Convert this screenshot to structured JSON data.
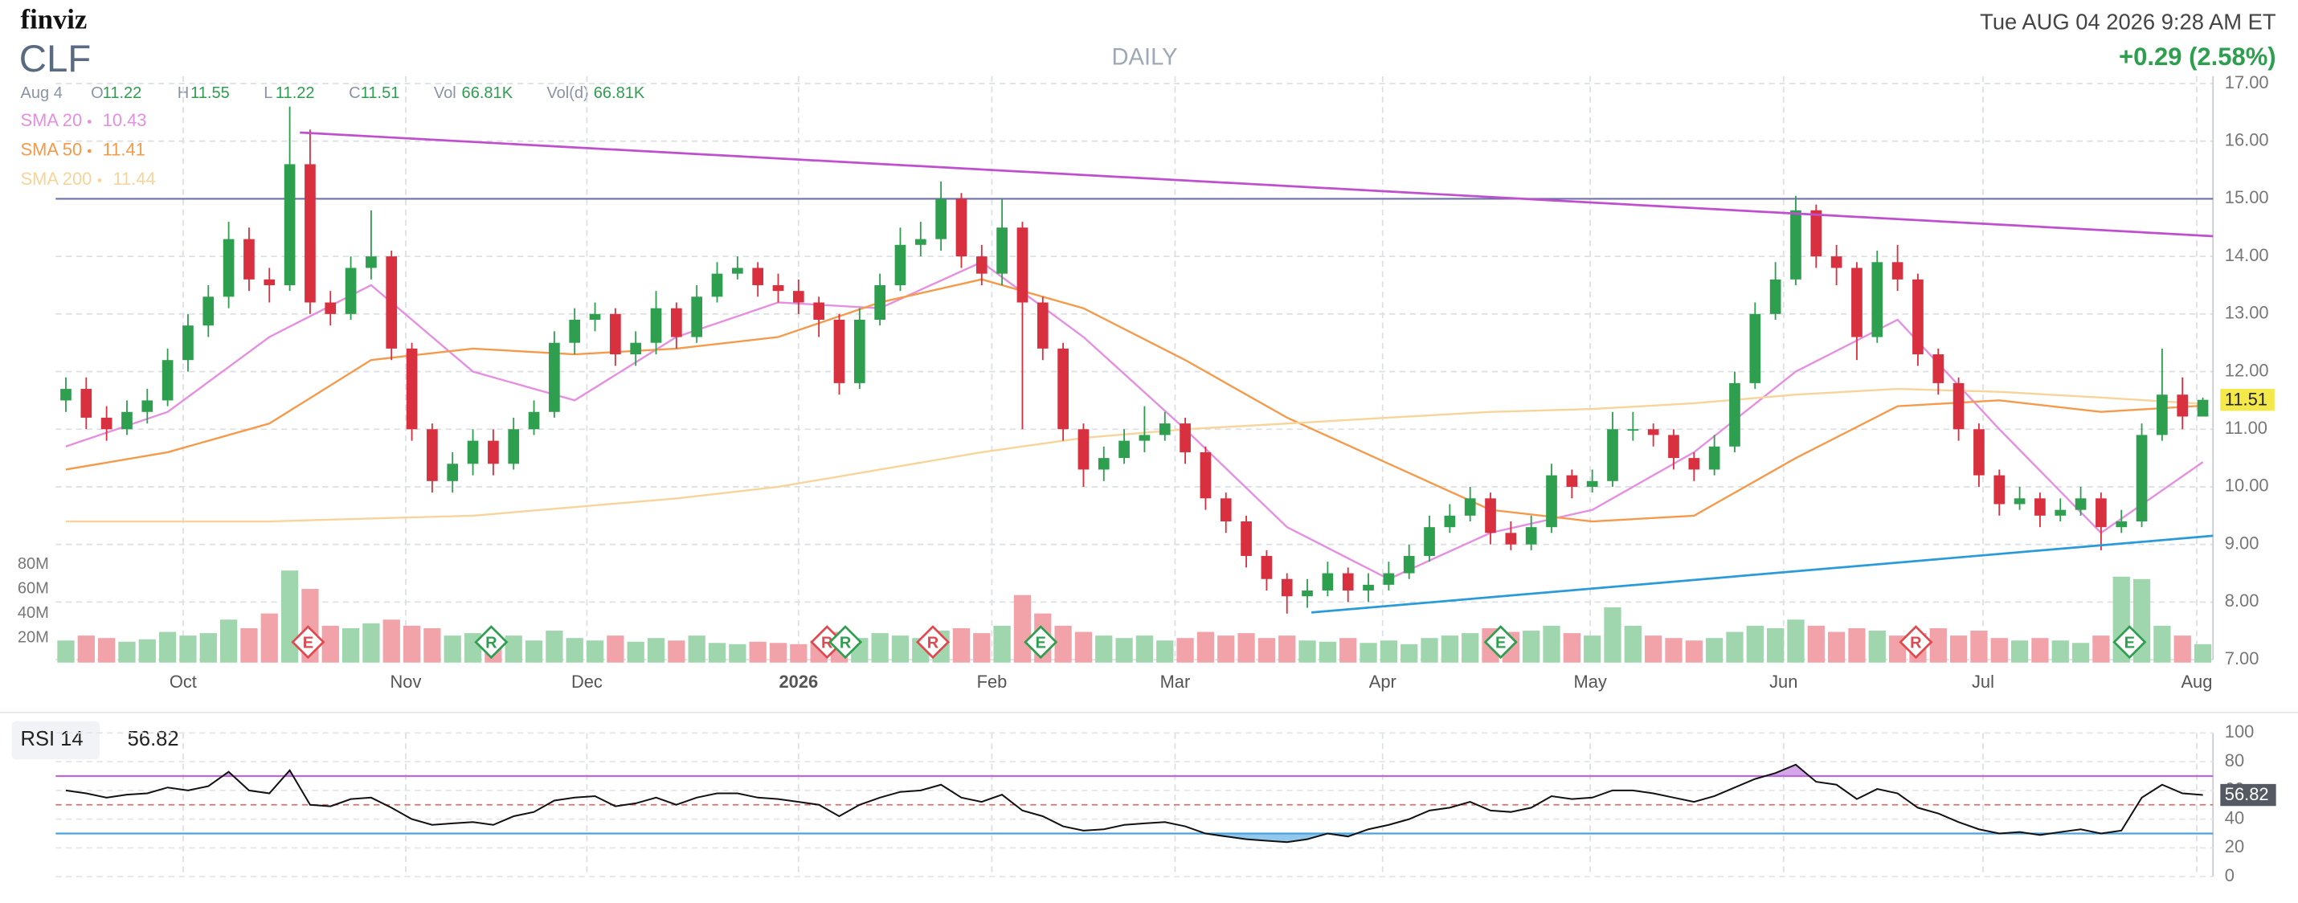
{
  "chart_data": {
    "type": "candlestick",
    "logo": "finviz",
    "ticker": "CLF",
    "period": "DAILY",
    "datetime": "Tue AUG 04 2026 9:28 AM ET",
    "change": "+0.29 (2.58%)",
    "quote": {
      "date": "Aug 4",
      "labels": [
        "O",
        "H",
        "L",
        "C"
      ],
      "vol_label": "Vol",
      "vol": "66.81K",
      "vold_label": "Vol(d)",
      "vold": "66.81K"
    },
    "grid": true,
    "xlim": [
      -0.5,
      105.5
    ],
    "xticks": [
      {
        "value": 5.76,
        "label": "Oct"
      },
      {
        "value": 16.7,
        "label": "Nov"
      },
      {
        "value": 25.6,
        "label": "Dec"
      },
      {
        "value": 36.0,
        "label": "2026"
      },
      {
        "value": 45.5,
        "label": "Feb"
      },
      {
        "value": 54.5,
        "label": "Mar"
      },
      {
        "value": 64.7,
        "label": "Apr"
      },
      {
        "value": 74.9,
        "label": "May"
      },
      {
        "value": 84.4,
        "label": "Jun"
      },
      {
        "value": 94.2,
        "label": "Jul"
      },
      {
        "value": 104.7,
        "label": "Aug"
      }
    ],
    "ylim": [
      7,
      17
    ],
    "yticks": [
      {
        "value": 7,
        "label": "7.00"
      },
      {
        "value": 8,
        "label": "8.00"
      },
      {
        "value": 9,
        "label": "9.00"
      },
      {
        "value": 10,
        "label": "10.00"
      },
      {
        "value": 11,
        "label": "11.00"
      },
      {
        "value": 12,
        "label": "12.00"
      },
      {
        "value": 13,
        "label": "13.00"
      },
      {
        "value": 14,
        "label": "14.00"
      },
      {
        "value": 15,
        "label": "15.00"
      },
      {
        "value": 16,
        "label": "16.00"
      },
      {
        "value": 17,
        "label": "17.00"
      }
    ],
    "up_color": "#2e9e4f",
    "down_color": "#d9303f",
    "open": [
      11.5,
      11.7,
      11.2,
      11.0,
      11.3,
      11.5,
      12.2,
      12.8,
      13.3,
      14.3,
      13.6,
      13.5,
      15.6,
      13.2,
      13.0,
      13.8,
      14.0,
      12.4,
      11.0,
      10.1,
      10.4,
      10.8,
      10.4,
      11.0,
      11.3,
      12.5,
      12.9,
      13.0,
      12.3,
      12.5,
      13.1,
      12.6,
      13.3,
      13.7,
      13.8,
      13.5,
      13.4,
      13.2,
      12.9,
      11.8,
      12.9,
      13.5,
      14.2,
      14.3,
      15.0,
      14.0,
      13.7,
      14.5,
      13.2,
      12.4,
      11.0,
      10.3,
      10.5,
      10.8,
      10.9,
      11.1,
      10.6,
      9.8,
      9.4,
      8.8,
      8.4,
      8.1,
      8.2,
      8.5,
      8.2,
      8.3,
      8.5,
      8.8,
      9.3,
      9.5,
      9.8,
      9.2,
      9.0,
      9.3,
      10.2,
      10.0,
      10.1,
      11.0,
      11.0,
      10.9,
      10.5,
      10.3,
      10.7,
      11.8,
      13.0,
      13.6,
      14.8,
      14.0,
      13.8,
      12.6,
      13.9,
      13.6,
      12.3,
      11.8,
      11.0,
      10.2,
      9.7,
      9.8,
      9.5,
      9.6,
      9.8,
      9.3,
      9.4,
      10.9,
      11.6,
      11.22
    ],
    "high": [
      11.9,
      11.9,
      11.4,
      11.5,
      11.7,
      12.4,
      13.0,
      13.5,
      14.6,
      14.5,
      13.8,
      16.6,
      16.2,
      13.4,
      14.0,
      14.8,
      14.1,
      12.5,
      11.1,
      10.6,
      11.0,
      11.0,
      11.2,
      11.5,
      12.7,
      13.1,
      13.2,
      13.1,
      12.7,
      13.4,
      13.2,
      13.5,
      13.9,
      14.0,
      13.9,
      13.7,
      13.6,
      13.3,
      13.0,
      13.1,
      13.7,
      14.5,
      14.6,
      15.3,
      15.1,
      14.2,
      15.0,
      14.6,
      13.3,
      12.5,
      11.1,
      10.7,
      11.0,
      11.4,
      11.3,
      11.2,
      10.7,
      9.9,
      9.5,
      8.9,
      8.5,
      8.4,
      8.7,
      8.6,
      8.5,
      8.7,
      9.0,
      9.5,
      9.7,
      10.0,
      9.9,
      9.4,
      9.5,
      10.4,
      10.3,
      10.3,
      11.3,
      11.3,
      11.1,
      11.0,
      10.6,
      10.9,
      12.0,
      13.2,
      13.9,
      15.05,
      14.9,
      14.2,
      13.9,
      14.1,
      14.2,
      13.7,
      12.4,
      11.9,
      11.1,
      10.3,
      10.0,
      9.9,
      9.8,
      10.0,
      9.9,
      9.6,
      11.1,
      12.4,
      11.9,
      11.55
    ],
    "low": [
      11.3,
      11.0,
      10.8,
      10.9,
      11.1,
      11.4,
      12.0,
      12.6,
      13.1,
      13.4,
      13.2,
      13.4,
      13.0,
      12.8,
      12.9,
      13.6,
      12.2,
      10.8,
      9.9,
      9.9,
      10.2,
      10.2,
      10.3,
      10.9,
      11.2,
      12.3,
      12.7,
      12.1,
      12.1,
      12.3,
      12.4,
      12.5,
      13.2,
      13.6,
      13.3,
      13.2,
      13.0,
      12.6,
      11.6,
      11.7,
      12.8,
      13.4,
      14.0,
      14.1,
      13.8,
      13.5,
      13.5,
      11.0,
      12.2,
      10.8,
      10.0,
      10.1,
      10.4,
      10.6,
      10.8,
      10.4,
      9.6,
      9.2,
      8.6,
      8.2,
      7.8,
      7.9,
      8.1,
      8.0,
      8.0,
      8.2,
      8.4,
      8.7,
      9.2,
      9.4,
      9.0,
      8.9,
      8.9,
      9.2,
      9.8,
      9.9,
      10.0,
      10.8,
      10.7,
      10.3,
      10.1,
      10.2,
      10.6,
      11.7,
      12.9,
      13.5,
      13.8,
      13.5,
      12.2,
      12.5,
      13.4,
      12.1,
      11.6,
      10.8,
      10.0,
      9.5,
      9.6,
      9.3,
      9.4,
      9.5,
      8.9,
      9.2,
      9.3,
      10.8,
      11.0,
      11.22
    ],
    "close": [
      11.7,
      11.2,
      11.0,
      11.3,
      11.5,
      12.2,
      12.8,
      13.3,
      14.3,
      13.6,
      13.5,
      15.6,
      13.2,
      13.0,
      13.8,
      14.0,
      12.4,
      11.0,
      10.1,
      10.4,
      10.8,
      10.4,
      11.0,
      11.3,
      12.5,
      12.9,
      13.0,
      12.3,
      12.5,
      13.1,
      12.6,
      13.3,
      13.7,
      13.8,
      13.5,
      13.4,
      13.2,
      12.9,
      11.8,
      12.9,
      13.5,
      14.2,
      14.3,
      15.0,
      14.0,
      13.7,
      14.5,
      13.2,
      12.4,
      11.0,
      10.3,
      10.5,
      10.8,
      10.9,
      11.1,
      10.6,
      9.8,
      9.4,
      8.8,
      8.4,
      8.1,
      8.2,
      8.5,
      8.2,
      8.3,
      8.5,
      8.8,
      9.3,
      9.5,
      9.8,
      9.2,
      9.0,
      9.3,
      10.2,
      10.0,
      10.1,
      11.0,
      11.0,
      10.9,
      10.5,
      10.3,
      10.7,
      11.8,
      13.0,
      13.6,
      14.8,
      14.0,
      13.8,
      12.6,
      13.9,
      13.6,
      12.3,
      11.8,
      11.0,
      10.2,
      9.7,
      9.8,
      9.5,
      9.6,
      9.8,
      9.3,
      9.4,
      10.9,
      11.6,
      11.22,
      11.51
    ],
    "volume": {
      "up_color": "#9fd6ae",
      "down_color": "#f2a3aa",
      "ylim": [
        0,
        80
      ],
      "yticks": [
        {
          "value": 20,
          "label": "20M"
        },
        {
          "value": 40,
          "label": "40M"
        },
        {
          "value": 60,
          "label": "60M"
        },
        {
          "value": 80,
          "label": "80M"
        }
      ],
      "values": [
        18,
        22,
        20,
        17,
        19,
        25,
        22,
        24,
        35,
        28,
        40,
        75,
        60,
        30,
        28,
        32,
        35,
        30,
        28,
        22,
        24,
        20,
        22,
        18,
        26,
        20,
        18,
        22,
        17,
        20,
        18,
        22,
        16,
        15,
        17,
        16,
        15,
        18,
        25,
        20,
        24,
        22,
        20,
        26,
        28,
        24,
        30,
        55,
        40,
        30,
        25,
        22,
        20,
        22,
        18,
        20,
        25,
        22,
        24,
        20,
        22,
        18,
        17,
        20,
        16,
        18,
        15,
        20,
        22,
        24,
        28,
        25,
        26,
        30,
        24,
        22,
        45,
        30,
        22,
        20,
        18,
        20,
        25,
        30,
        28,
        35,
        30,
        25,
        28,
        26,
        22,
        24,
        28,
        22,
        26,
        20,
        18,
        20,
        18,
        16,
        22,
        70,
        68,
        30,
        22,
        15
      ]
    },
    "sma": [
      {
        "name": "SMA 20",
        "color": "#e58fe0",
        "x": [
          0,
          5,
          10,
          15,
          20,
          25,
          30,
          35,
          40,
          45,
          50,
          55,
          60,
          65,
          70,
          75,
          80,
          85,
          90,
          95,
          100,
          105
        ],
        "values": [
          10.7,
          11.3,
          12.6,
          13.5,
          12.0,
          11.5,
          12.6,
          13.2,
          13.1,
          13.9,
          12.6,
          11.0,
          9.3,
          8.4,
          9.2,
          9.6,
          10.6,
          12.0,
          12.9,
          11.0,
          9.2,
          10.43
        ]
      },
      {
        "name": "SMA 50",
        "color": "#f59a4a",
        "x": [
          0,
          5,
          10,
          15,
          20,
          25,
          30,
          35,
          40,
          45,
          50,
          55,
          60,
          65,
          70,
          75,
          80,
          85,
          90,
          95,
          100,
          105
        ],
        "values": [
          10.3,
          10.6,
          11.1,
          12.2,
          12.4,
          12.3,
          12.4,
          12.6,
          13.2,
          13.6,
          13.1,
          12.2,
          11.2,
          10.4,
          9.6,
          9.4,
          9.5,
          10.5,
          11.4,
          11.5,
          11.3,
          11.41
        ]
      },
      {
        "name": "SMA 200",
        "color": "#f7d49a",
        "x": [
          0,
          5,
          10,
          15,
          20,
          25,
          30,
          35,
          40,
          45,
          50,
          55,
          60,
          65,
          70,
          75,
          80,
          85,
          90,
          95,
          100,
          105
        ],
        "values": [
          9.4,
          9.4,
          9.4,
          9.45,
          9.5,
          9.65,
          9.8,
          10.0,
          10.3,
          10.6,
          10.85,
          11.0,
          11.1,
          11.2,
          11.3,
          11.35,
          11.45,
          11.6,
          11.7,
          11.65,
          11.55,
          11.44
        ]
      }
    ],
    "hlines": [
      {
        "value": 15.0,
        "color": "#7070a8"
      }
    ],
    "trendlines": [
      {
        "color": "#c04fd0",
        "x": [
          11.5,
          105.5
        ],
        "y": [
          16.15,
          14.35
        ]
      },
      {
        "color": "#2a9ad8",
        "x": [
          61.2,
          105.5
        ],
        "y": [
          7.82,
          9.15
        ]
      }
    ],
    "events": [
      {
        "x": 11.9,
        "label": "E",
        "color": "#e0494f"
      },
      {
        "x": 20.9,
        "label": "R",
        "color": "#2e9e4f"
      },
      {
        "x": 37.4,
        "label": "R",
        "color": "#e0494f"
      },
      {
        "x": 38.3,
        "label": "R",
        "color": "#2e9e4f"
      },
      {
        "x": 42.6,
        "label": "R",
        "color": "#e0494f"
      },
      {
        "x": 47.9,
        "label": "E",
        "color": "#2e9e4f"
      },
      {
        "x": 70.5,
        "label": "E",
        "color": "#2e9e4f"
      },
      {
        "x": 90.9,
        "label": "R",
        "color": "#e0494f"
      },
      {
        "x": 101.4,
        "label": "E",
        "color": "#2e9e4f"
      }
    ],
    "rsi": {
      "name": "RSI 14",
      "color": "#111111",
      "ylim": [
        0,
        100
      ],
      "yticks": [
        0,
        20,
        40,
        60,
        80,
        100
      ],
      "overbought": 70,
      "oversold": 30,
      "mid": 50,
      "overbought_color": "#b96ad8",
      "oversold_color": "#4aa3e0",
      "mid_color": "#e07070",
      "values": [
        60,
        58,
        55,
        57,
        58,
        62,
        60,
        63,
        73,
        60,
        58,
        74,
        50,
        49,
        54,
        55,
        48,
        40,
        36,
        37,
        38,
        36,
        42,
        45,
        53,
        55,
        56,
        49,
        51,
        55,
        50,
        55,
        58,
        58,
        55,
        54,
        52,
        50,
        42,
        50,
        55,
        59,
        60,
        64,
        55,
        52,
        57,
        46,
        42,
        35,
        32,
        33,
        36,
        37,
        38,
        35,
        30,
        28,
        26,
        25,
        24,
        26,
        30,
        28,
        33,
        36,
        40,
        46,
        48,
        52,
        46,
        45,
        48,
        56,
        54,
        55,
        60,
        60,
        58,
        55,
        52,
        56,
        62,
        68,
        72,
        78,
        66,
        64,
        54,
        61,
        58,
        48,
        44,
        38,
        33,
        30,
        31,
        29,
        31,
        33,
        30,
        32,
        55,
        64,
        58,
        56.82
      ]
    }
  }
}
